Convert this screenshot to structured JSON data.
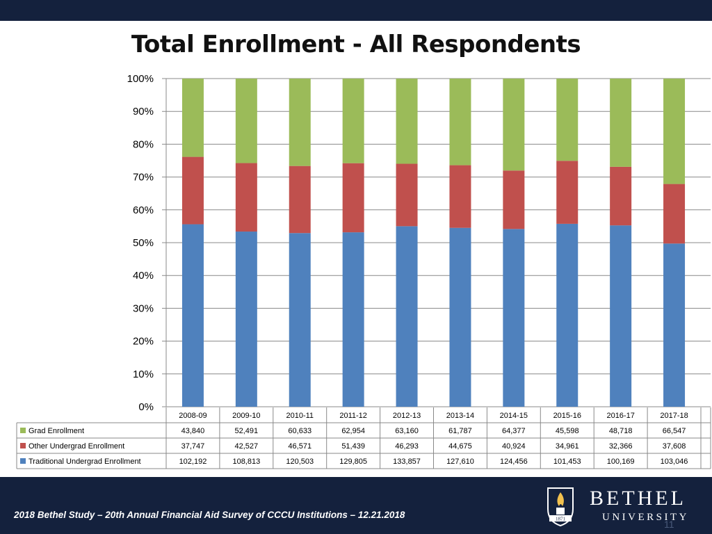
{
  "slide": {
    "title": "Total Enrollment - All Respondents",
    "footer": "2018 Bethel Study – 20th Annual Financial Aid Survey of CCCU Institutions – 12.21.2018",
    "logo_name": "BETHEL",
    "logo_sub": "UNIVERSITY",
    "logo_year": "1871",
    "page_number": "11"
  },
  "colors": {
    "traditional": "#4f81bd",
    "other": "#c0504d",
    "grad": "#9bbb59",
    "grid": "#888888",
    "navy": "#14213d"
  },
  "chart_data": {
    "type": "bar",
    "stacking": "percent",
    "title": "Total Enrollment - All Respondents",
    "categories": [
      "2008-09",
      "2009-10",
      "2010-11",
      "2011-12",
      "2012-13",
      "2013-14",
      "2014-15",
      "2015-16",
      "2016-17",
      "2017-18"
    ],
    "y_ticks": [
      "0%",
      "10%",
      "20%",
      "30%",
      "40%",
      "50%",
      "60%",
      "70%",
      "80%",
      "90%",
      "100%"
    ],
    "ylim": [
      0,
      100
    ],
    "legend_position": "table-left",
    "series": [
      {
        "name": "Traditional Undergrad Enrollment",
        "color_key": "traditional",
        "values": [
          102192,
          108813,
          120503,
          129805,
          133857,
          127610,
          124456,
          101453,
          100169,
          103046
        ],
        "labels": [
          "102,192",
          "108,813",
          "120,503",
          "129,805",
          "133,857",
          "127,610",
          "124,456",
          "101,453",
          "100,169",
          "103,046"
        ]
      },
      {
        "name": "Other Undergrad Enrollment",
        "color_key": "other",
        "values": [
          37747,
          42527,
          46571,
          51439,
          46293,
          44675,
          40924,
          34961,
          32366,
          37608
        ],
        "labels": [
          "37,747",
          "42,527",
          "46,571",
          "51,439",
          "46,293",
          "44,675",
          "40,924",
          "34,961",
          "32,366",
          "37,608"
        ]
      },
      {
        "name": "Grad Enrollment",
        "color_key": "grad",
        "values": [
          43840,
          52491,
          60633,
          62954,
          63160,
          61787,
          64377,
          45598,
          48718,
          66547
        ],
        "labels": [
          "43,840",
          "52,491",
          "60,633",
          "62,954",
          "63,160",
          "61,787",
          "64,377",
          "45,598",
          "48,718",
          "66,547"
        ]
      }
    ]
  }
}
